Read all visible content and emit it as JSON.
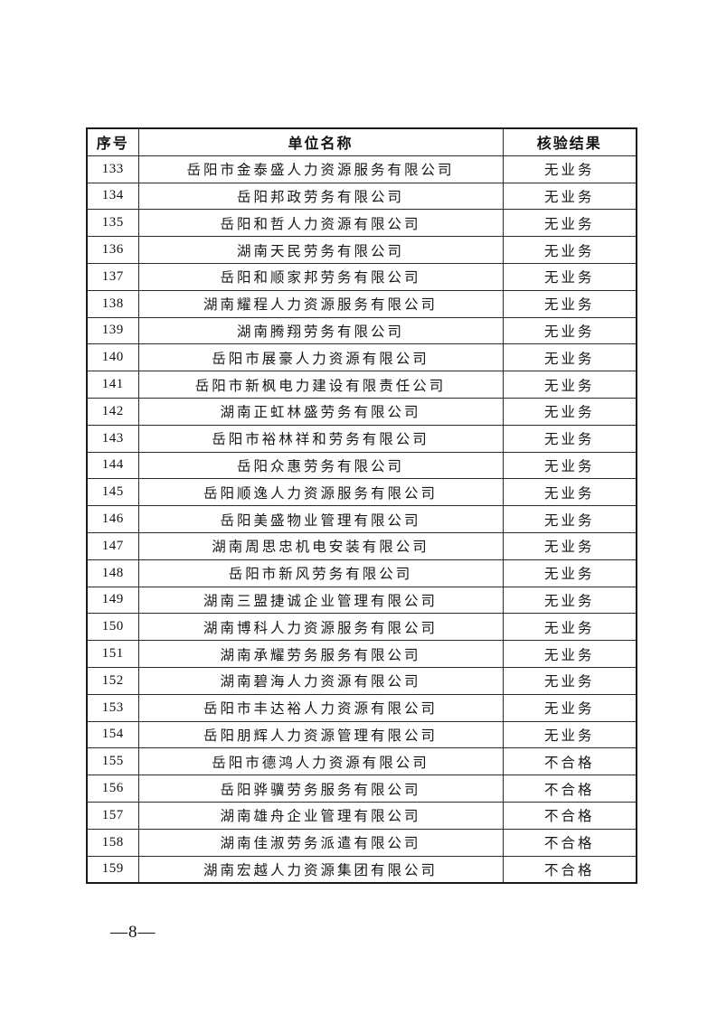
{
  "table": {
    "headers": {
      "index": "序号",
      "company": "单位名称",
      "result": "核验结果"
    },
    "rows": [
      {
        "no": "133",
        "name": "岳阳市金泰盛人力资源服务有限公司",
        "result": "无业务"
      },
      {
        "no": "134",
        "name": "岳阳邦政劳务有限公司",
        "result": "无业务"
      },
      {
        "no": "135",
        "name": "岳阳和哲人力资源有限公司",
        "result": "无业务"
      },
      {
        "no": "136",
        "name": "湖南天民劳务有限公司",
        "result": "无业务"
      },
      {
        "no": "137",
        "name": "岳阳和顺家邦劳务有限公司",
        "result": "无业务"
      },
      {
        "no": "138",
        "name": "湖南耀程人力资源服务有限公司",
        "result": "无业务"
      },
      {
        "no": "139",
        "name": "湖南腾翔劳务有限公司",
        "result": "无业务"
      },
      {
        "no": "140",
        "name": "岳阳市展豪人力资源有限公司",
        "result": "无业务"
      },
      {
        "no": "141",
        "name": "岳阳市新枫电力建设有限责任公司",
        "result": "无业务"
      },
      {
        "no": "142",
        "name": "湖南正虹林盛劳务有限公司",
        "result": "无业务"
      },
      {
        "no": "143",
        "name": "岳阳市裕林祥和劳务有限公司",
        "result": "无业务"
      },
      {
        "no": "144",
        "name": "岳阳众惠劳务有限公司",
        "result": "无业务"
      },
      {
        "no": "145",
        "name": "岳阳顺逸人力资源服务有限公司",
        "result": "无业务"
      },
      {
        "no": "146",
        "name": "岳阳美盛物业管理有限公司",
        "result": "无业务"
      },
      {
        "no": "147",
        "name": "湖南周思忠机电安装有限公司",
        "result": "无业务"
      },
      {
        "no": "148",
        "name": "岳阳市新风劳务有限公司",
        "result": "无业务"
      },
      {
        "no": "149",
        "name": "湖南三盟捷诚企业管理有限公司",
        "result": "无业务"
      },
      {
        "no": "150",
        "name": "湖南博科人力资源服务有限公司",
        "result": "无业务"
      },
      {
        "no": "151",
        "name": "湖南承耀劳务服务有限公司",
        "result": "无业务"
      },
      {
        "no": "152",
        "name": "湖南碧海人力资源有限公司",
        "result": "无业务"
      },
      {
        "no": "153",
        "name": "岳阳市丰达裕人力资源有限公司",
        "result": "无业务"
      },
      {
        "no": "154",
        "name": "岳阳朋辉人力资源管理有限公司",
        "result": "无业务"
      },
      {
        "no": "155",
        "name": "岳阳市德鸿人力资源有限公司",
        "result": "不合格"
      },
      {
        "no": "156",
        "name": "岳阳骅骥劳务服务有限公司",
        "result": "不合格"
      },
      {
        "no": "157",
        "name": "湖南雄舟企业管理有限公司",
        "result": "不合格"
      },
      {
        "no": "158",
        "name": "湖南佳淑劳务派遣有限公司",
        "result": "不合格"
      },
      {
        "no": "159",
        "name": "湖南宏越人力资源集团有限公司",
        "result": "不合格"
      }
    ]
  },
  "footer": {
    "page_number": "—8—"
  }
}
